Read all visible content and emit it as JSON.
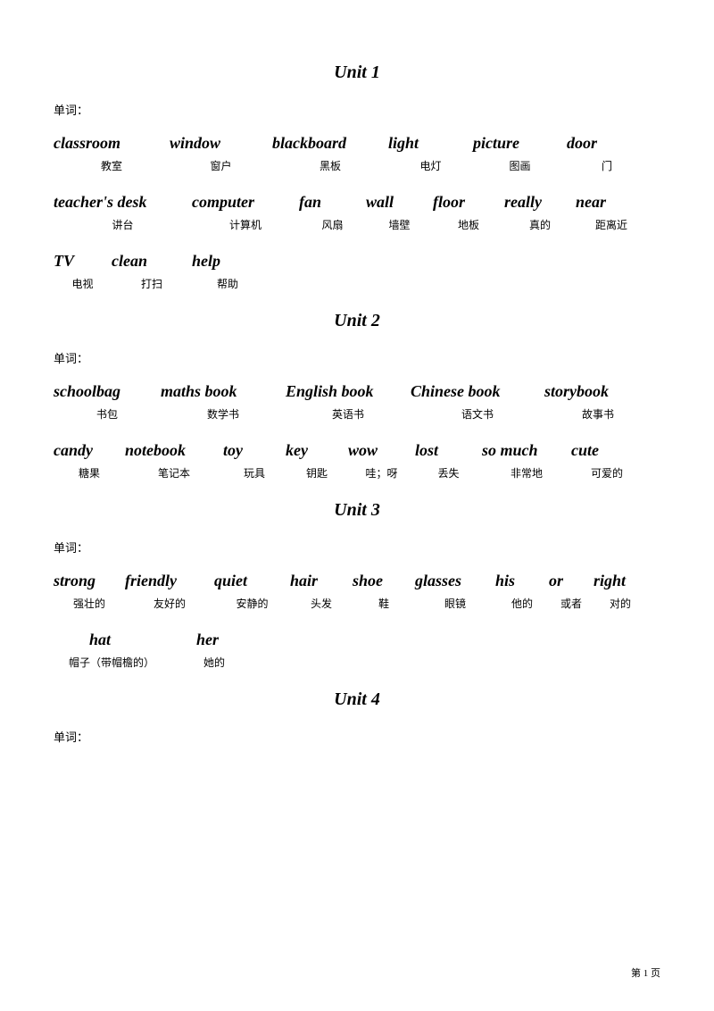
{
  "units": [
    {
      "title": "Unit   1",
      "label": "单词：",
      "rows": [
        {
          "words": [
            "classroom",
            "window",
            "blackboard",
            "light",
            "picture",
            "door"
          ],
          "trans": [
            "教室",
            "窗户",
            "黑板",
            "电灯",
            "图画",
            "门"
          ],
          "widths": [
            130,
            115,
            130,
            95,
            105,
            90
          ]
        },
        {
          "words": [
            "teacher's desk",
            "computer",
            "fan",
            "wall",
            "floor",
            "really",
            "near"
          ],
          "trans": [
            "讲台",
            "计算机",
            "风扇",
            "墙壁",
            "地板",
            "真的",
            "距离近"
          ],
          "widths": [
            155,
            120,
            75,
            75,
            80,
            80,
            80
          ]
        },
        {
          "words": [
            "TV",
            "clean",
            "help"
          ],
          "trans": [
            "电视",
            "打扫",
            "帮助"
          ],
          "widths": [
            65,
            90,
            80
          ]
        }
      ]
    },
    {
      "title": "Unit   2",
      "label": "单词：",
      "rows": [
        {
          "words": [
            "schoolbag",
            "maths book",
            "English book",
            "Chinese book",
            "storybook"
          ],
          "trans": [
            "书包",
            "数学书",
            "英语书",
            "语文书",
            "故事书"
          ],
          "widths": [
            120,
            140,
            140,
            150,
            120
          ]
        },
        {
          "words": [
            "candy",
            "notebook",
            "toy",
            "key",
            "wow",
            "lost",
            "so much",
            "cute"
          ],
          "trans": [
            "糖果",
            "笔记本",
            "玩具",
            "钥匙",
            "哇；呀",
            "丢失",
            "非常地",
            "可爱的"
          ],
          "widths": [
            80,
            110,
            70,
            70,
            75,
            75,
            100,
            80
          ]
        }
      ]
    },
    {
      "title": "Unit   3",
      "label": "单词：",
      "rows": [
        {
          "words": [
            "strong",
            "friendly",
            "quiet",
            "hair",
            "shoe",
            "glasses",
            "his",
            "or",
            "right"
          ],
          "trans": [
            "强壮的",
            "友好的",
            "安静的",
            "头发",
            "鞋",
            "眼镜",
            "他的",
            "或者",
            "对的"
          ],
          "widths": [
            80,
            100,
            85,
            70,
            70,
            90,
            60,
            50,
            60
          ]
        },
        {
          "words": [
            "hat",
            "her"
          ],
          "trans": [
            "帽子（带帽檐的）",
            "她的"
          ],
          "widths": [
            130,
            100
          ],
          "wordPadLeft": [
            40,
            30
          ]
        }
      ]
    },
    {
      "title": "Unit   4",
      "label": "单词：",
      "rows": []
    }
  ],
  "pageNum": "第 1 页"
}
